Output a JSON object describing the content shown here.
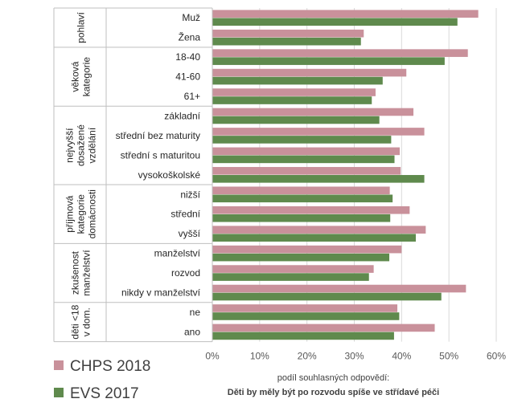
{
  "chart_data": {
    "type": "bar",
    "orientation": "horizontal",
    "xlim": [
      0,
      60
    ],
    "xticks": [
      "0%",
      "10%",
      "20%",
      "30%",
      "40%",
      "50%",
      "60%"
    ],
    "xlabel": "podíl souhlasných odpovědí:",
    "xlabel2": "Děti by měly být po rozvodu spíše ve střídavé péči",
    "groups": [
      {
        "label": [
          "pohlaví"
        ],
        "categories": [
          "Muž",
          "Žena"
        ]
      },
      {
        "label": [
          "věková",
          "kategorie"
        ],
        "categories": [
          "18-40",
          "41-60",
          "61+"
        ]
      },
      {
        "label": [
          "nejvyšší",
          "dosažené",
          "vzdělání"
        ],
        "categories": [
          "základní",
          "střední bez maturity",
          "střední s maturitou",
          "vysokoškolské"
        ]
      },
      {
        "label": [
          "příjmová",
          "kategorie",
          "domácnosti"
        ],
        "categories": [
          "nižší",
          "střední",
          "vyšší"
        ]
      },
      {
        "label": [
          "zkušenost",
          "manželství"
        ],
        "categories": [
          "manželství",
          "rozvod",
          "nikdy v manželství"
        ]
      },
      {
        "label": [
          "děti <18",
          "v dom."
        ],
        "categories": [
          "ne",
          "ano"
        ]
      }
    ],
    "series": [
      {
        "name": "CHPS 2018",
        "color": "#c9919b",
        "values": [
          56.2,
          32.0,
          54.0,
          41.0,
          34.5,
          42.5,
          44.8,
          39.6,
          39.8,
          37.5,
          41.7,
          45.1,
          40.0,
          34.1,
          53.6,
          39.1,
          47.0
        ]
      },
      {
        "name": "EVS 2017",
        "color": "#5f8a4d",
        "values": [
          51.8,
          31.4,
          49.1,
          36.0,
          33.7,
          35.3,
          37.8,
          38.5,
          44.8,
          38.1,
          37.6,
          43.0,
          37.4,
          33.1,
          48.4,
          39.5,
          38.4
        ]
      }
    ]
  }
}
